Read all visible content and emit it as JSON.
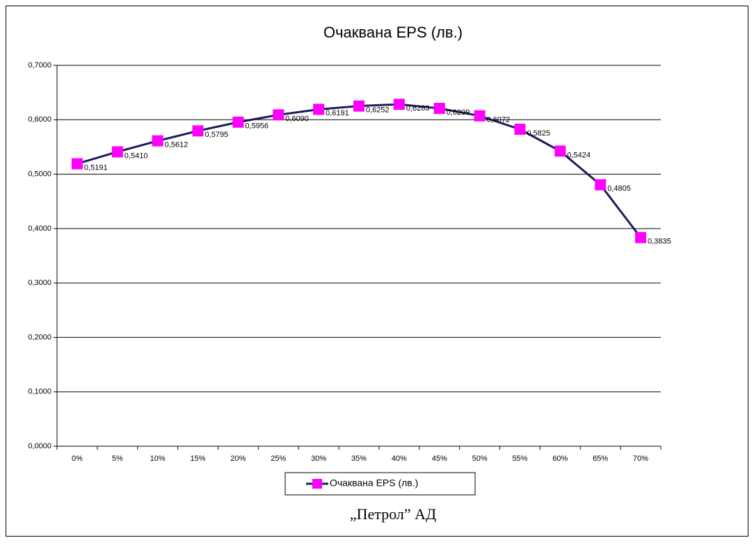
{
  "chart_data": {
    "type": "line",
    "title": "Очаквана EPS (лв.)",
    "categories": [
      "0%",
      "5%",
      "10%",
      "15%",
      "20%",
      "25%",
      "30%",
      "35%",
      "40%",
      "45%",
      "50%",
      "55%",
      "60%",
      "65%",
      "70%"
    ],
    "series": [
      {
        "name": "Очаквана EPS (лв.)",
        "color": "#1c1c5a",
        "marker_color": "#ff00ff",
        "values": [
          0.5191,
          0.541,
          0.5612,
          0.5795,
          0.5956,
          0.609,
          0.6191,
          0.6252,
          0.6283,
          0.6209,
          0.6072,
          0.5825,
          0.5424,
          0.4805,
          0.3835
        ],
        "value_labels": [
          "0,5191",
          "0,5410",
          "0,5612",
          "0,5795",
          "0,5956",
          "0,6090",
          "0,6191",
          "0,6252",
          "0,6283",
          "0,6209",
          "0,6072",
          "0,5825",
          "0,5424",
          "0,4805",
          "0,3835"
        ]
      }
    ],
    "ylim": [
      0,
      0.7
    ],
    "yticks": [
      {
        "value": 0,
        "label": "0,0000"
      },
      {
        "value": 0.1,
        "label": "0,1000"
      },
      {
        "value": 0.2,
        "label": "0,2000"
      },
      {
        "value": 0.3,
        "label": "0,3000"
      },
      {
        "value": 0.4,
        "label": "0,4000"
      },
      {
        "value": 0.5,
        "label": "0,5000"
      },
      {
        "value": 0.6,
        "label": "0,6000"
      },
      {
        "value": 0.7,
        "label": "0,7000"
      }
    ],
    "grid": true,
    "legend": "bottom",
    "caption": "„Петрол” АД"
  }
}
